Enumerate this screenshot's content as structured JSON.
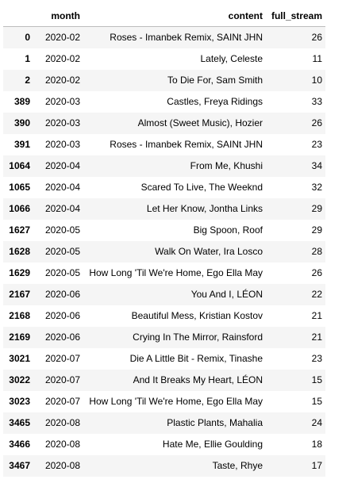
{
  "table": {
    "columns": {
      "index": "",
      "month": "month",
      "content": "content",
      "full_stream": "full_stream"
    },
    "rows": [
      {
        "index": "0",
        "month": "2020-02",
        "content": "Roses - Imanbek Remix, SAINt JHN",
        "full_stream": "26"
      },
      {
        "index": "1",
        "month": "2020-02",
        "content": "Lately, Celeste",
        "full_stream": "11"
      },
      {
        "index": "2",
        "month": "2020-02",
        "content": "To Die For, Sam Smith",
        "full_stream": "10"
      },
      {
        "index": "389",
        "month": "2020-03",
        "content": "Castles, Freya Ridings",
        "full_stream": "33"
      },
      {
        "index": "390",
        "month": "2020-03",
        "content": "Almost (Sweet Music), Hozier",
        "full_stream": "26"
      },
      {
        "index": "391",
        "month": "2020-03",
        "content": "Roses - Imanbek Remix, SAINt JHN",
        "full_stream": "23"
      },
      {
        "index": "1064",
        "month": "2020-04",
        "content": "From Me, Khushi",
        "full_stream": "34"
      },
      {
        "index": "1065",
        "month": "2020-04",
        "content": "Scared To Live, The Weeknd",
        "full_stream": "32"
      },
      {
        "index": "1066",
        "month": "2020-04",
        "content": "Let Her Know, Jontha Links",
        "full_stream": "29"
      },
      {
        "index": "1627",
        "month": "2020-05",
        "content": "Big Spoon, Roof",
        "full_stream": "29"
      },
      {
        "index": "1628",
        "month": "2020-05",
        "content": "Walk On Water, Ira Losco",
        "full_stream": "28"
      },
      {
        "index": "1629",
        "month": "2020-05",
        "content": "How Long 'Til We're Home, Ego Ella May",
        "full_stream": "26"
      },
      {
        "index": "2167",
        "month": "2020-06",
        "content": "You And I, LÉON",
        "full_stream": "22"
      },
      {
        "index": "2168",
        "month": "2020-06",
        "content": "Beautiful Mess, Kristian Kostov",
        "full_stream": "21"
      },
      {
        "index": "2169",
        "month": "2020-06",
        "content": "Crying In The Mirror, Rainsford",
        "full_stream": "21"
      },
      {
        "index": "3021",
        "month": "2020-07",
        "content": "Die A Little Bit - Remix, Tinashe",
        "full_stream": "23"
      },
      {
        "index": "3022",
        "month": "2020-07",
        "content": "And It Breaks My Heart, LÉON",
        "full_stream": "15"
      },
      {
        "index": "3023",
        "month": "2020-07",
        "content": "How Long 'Til We're Home, Ego Ella May",
        "full_stream": "15"
      },
      {
        "index": "3465",
        "month": "2020-08",
        "content": "Plastic Plants, Mahalia",
        "full_stream": "24"
      },
      {
        "index": "3466",
        "month": "2020-08",
        "content": "Hate Me, Ellie Goulding",
        "full_stream": "18"
      },
      {
        "index": "3467",
        "month": "2020-08",
        "content": "Taste, Rhye",
        "full_stream": "17"
      }
    ]
  },
  "colors": {
    "stripe": "#f5f5f5",
    "background": "#ffffff",
    "header_rule": "#bdbdbd",
    "text": "#000000"
  }
}
